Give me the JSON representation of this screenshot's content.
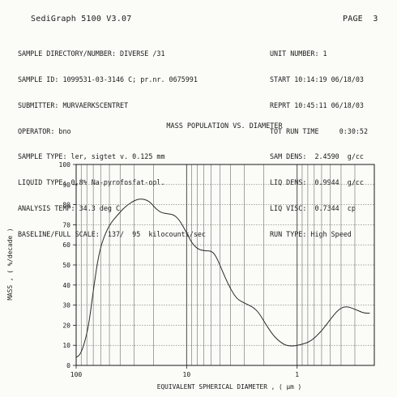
{
  "header": {
    "product": "SediGraph 5100 V3.07",
    "page": "PAGE  3"
  },
  "left_info": [
    "SAMPLE DIRECTORY/NUMBER: DIVERSE /31",
    "SAMPLE ID: 1099531-03-3146 C; pr.nr. 0675991",
    "SUBMITTER: MURVAERKSCENTRET",
    "OPERATOR: bno",
    "SAMPLE TYPE: ler, sigtet v. 0.125 mm",
    "LIQUID TYPE: 0,8% Na-pyrofosfat-opl.",
    "ANALYSIS TEMP: 34.3 deg C",
    "BASELINE/FULL SCALE:  137/  95  kilocounts/sec"
  ],
  "right_info": [
    "UNIT NUMBER: 1",
    "START 10:14:19 06/18/03",
    "REPRT 10:45:11 06/18/03",
    "TOT RUN TIME     0:30:52",
    "SAM DENS:  2.4590  g/cc",
    "LIQ DENS:  0.9944  g/cc",
    "LIQ VISC:  0.7344  cp",
    "RUN TYPE: High Speed"
  ],
  "chart_data": {
    "type": "line",
    "title": "MASS POPULATION VS. DIAMETER",
    "xlabel": "EQUIVALENT SPHERICAL DIAMETER , ( µm )",
    "ylabel": "MASS , ( %/decade )",
    "x_scale": "log",
    "x_reversed": true,
    "xlim": [
      100,
      0.2
    ],
    "ylim": [
      0,
      100
    ],
    "x_tick_labels": [
      {
        "value": 100,
        "label": "100"
      },
      {
        "value": 10,
        "label": "10"
      },
      {
        "value": 1,
        "label": "1"
      }
    ],
    "y_ticks": [
      0,
      10,
      20,
      30,
      40,
      50,
      60,
      70,
      80,
      90,
      100
    ],
    "grid": true,
    "series": [
      {
        "color": "#2a2a2a",
        "points": [
          [
            100,
            4
          ],
          [
            93,
            5
          ],
          [
            85,
            10
          ],
          [
            77,
            20
          ],
          [
            70,
            37
          ],
          [
            64,
            52
          ],
          [
            58,
            62
          ],
          [
            50,
            70
          ],
          [
            42,
            75
          ],
          [
            36,
            79
          ],
          [
            30,
            82
          ],
          [
            26,
            83
          ],
          [
            22,
            82
          ],
          [
            19,
            78
          ],
          [
            17,
            76
          ],
          [
            15,
            75.5
          ],
          [
            13,
            75
          ],
          [
            11.5,
            72
          ],
          [
            10,
            66
          ],
          [
            9,
            61
          ],
          [
            8,
            58
          ],
          [
            7,
            57
          ],
          [
            6,
            57
          ],
          [
            5.5,
            55
          ],
          [
            5,
            50
          ],
          [
            4.5,
            44
          ],
          [
            4,
            38
          ],
          [
            3.5,
            33
          ],
          [
            3,
            31
          ],
          [
            2.5,
            29
          ],
          [
            2.2,
            26
          ],
          [
            1.9,
            20
          ],
          [
            1.6,
            14
          ],
          [
            1.3,
            10
          ],
          [
            1.1,
            9.5
          ],
          [
            0.9,
            10.5
          ],
          [
            0.75,
            12
          ],
          [
            0.6,
            17
          ],
          [
            0.5,
            23
          ],
          [
            0.42,
            28
          ],
          [
            0.36,
            29.5
          ],
          [
            0.3,
            28
          ],
          [
            0.25,
            26
          ],
          [
            0.22,
            26
          ]
        ]
      }
    ]
  }
}
